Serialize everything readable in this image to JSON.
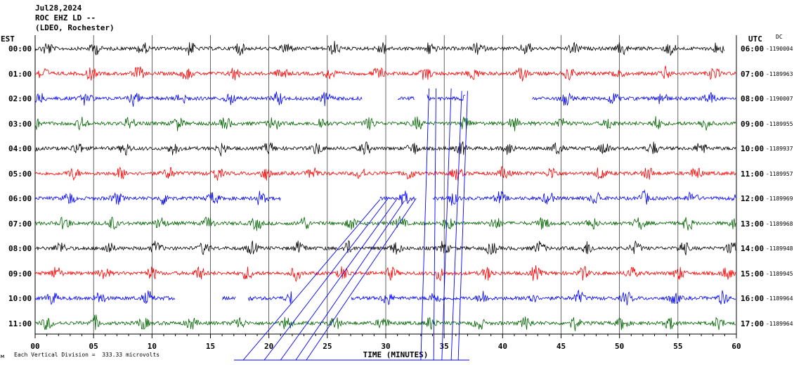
{
  "header": {
    "date": "Jul28,2024",
    "station": "ROC EHZ LD --",
    "network": "(LDEO, Rochester)"
  },
  "left_zone": "EST",
  "right_zone": "UTC",
  "dc_label": "DC",
  "footer": {
    "scale_text": "Each Vertical Division =  333.33 microvolts",
    "corner_mark": "м"
  },
  "colors": {
    "trace_cycle": [
      "#000000",
      "#ff0000",
      "#0000ff",
      "#006400"
    ],
    "grid": "#000000",
    "event_lines": "#0000ff"
  },
  "chart_data": {
    "type": "line",
    "title": "ROC EHZ LD --",
    "xlabel": "TIME (MINUTES)",
    "ylabel": "",
    "x_range": [
      0,
      60
    ],
    "x_ticks": [
      "00",
      "05",
      "10",
      "15",
      "20",
      "25",
      "30",
      "35",
      "40",
      "45",
      "50",
      "55",
      "60"
    ],
    "grid_vertical_every_minutes": 5,
    "rows": [
      {
        "est": "00:00",
        "utc": "06:00",
        "dc": "-1190004",
        "gaps": [
          [
            59,
            60
          ]
        ]
      },
      {
        "est": "01:00",
        "utc": "07:00",
        "dc": "-1189963",
        "gaps": []
      },
      {
        "est": "02:00",
        "utc": "08:00",
        "dc": "-1190007",
        "gaps": [
          [
            28,
            31
          ],
          [
            32.5,
            33.5
          ],
          [
            34.2,
            34.4
          ],
          [
            36.8,
            42.5
          ]
        ]
      },
      {
        "est": "03:00",
        "utc": "09:00",
        "dc": "-1189955",
        "gaps": []
      },
      {
        "est": "04:00",
        "utc": "10:00",
        "dc": "-1189937",
        "gaps": []
      },
      {
        "est": "05:00",
        "utc": "11:00",
        "dc": "-1189957",
        "gaps": []
      },
      {
        "est": "06:00",
        "utc": "12:00",
        "dc": "-1189969",
        "gaps": [
          [
            21,
            29.5
          ],
          [
            32.5,
            34
          ]
        ]
      },
      {
        "est": "07:00",
        "utc": "13:00",
        "dc": "-1189968",
        "gaps": []
      },
      {
        "est": "08:00",
        "utc": "14:00",
        "dc": "-1189948",
        "gaps": []
      },
      {
        "est": "09:00",
        "utc": "15:00",
        "dc": "-1189945",
        "gaps": []
      },
      {
        "est": "10:00",
        "utc": "16:00",
        "dc": "-1189964",
        "gaps": [
          [
            12,
            16
          ],
          [
            17.2,
            18.2
          ],
          [
            22,
            27
          ]
        ]
      },
      {
        "est": "11:00",
        "utc": "17:00",
        "dc": "-1189964",
        "gaps": []
      }
    ]
  }
}
